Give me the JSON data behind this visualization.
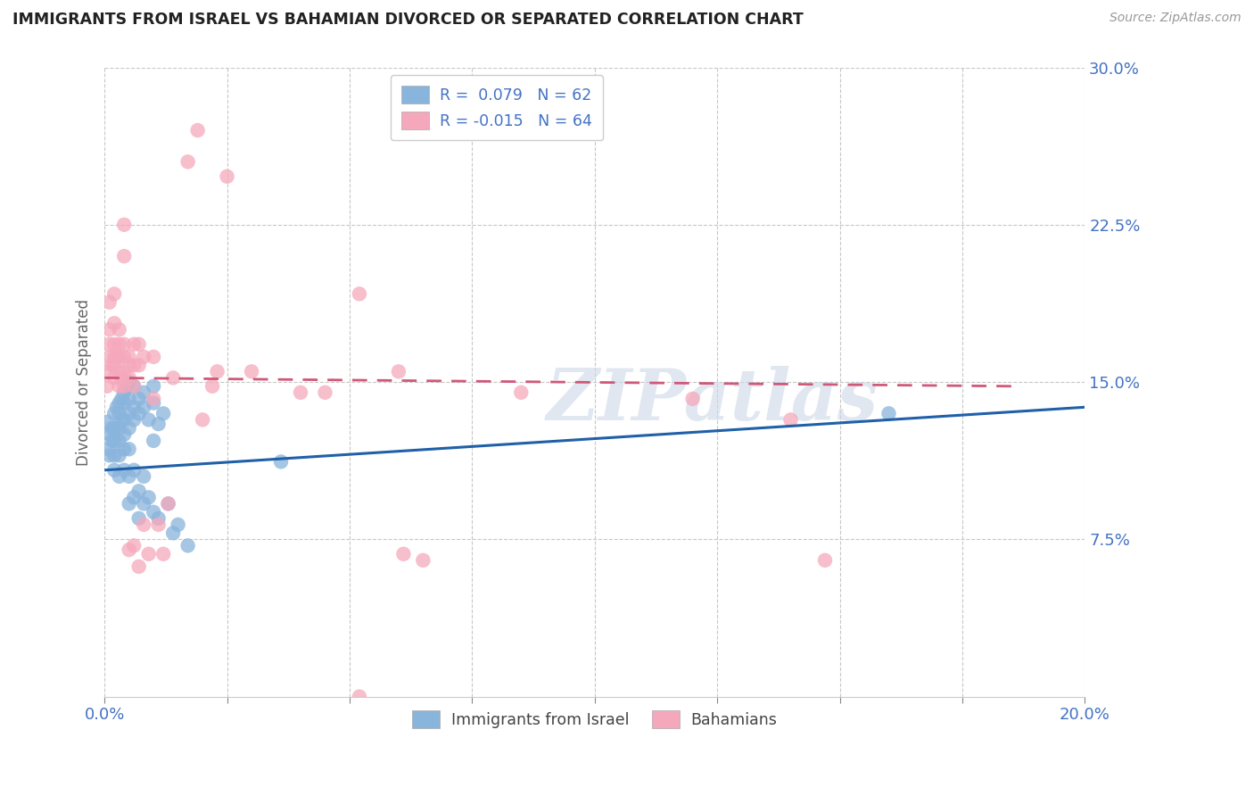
{
  "title": "IMMIGRANTS FROM ISRAEL VS BAHAMIAN DIVORCED OR SEPARATED CORRELATION CHART",
  "source": "Source: ZipAtlas.com",
  "ylabel": "Divorced or Separated",
  "xmin": 0.0,
  "xmax": 0.2,
  "ymin": 0.0,
  "ymax": 0.3,
  "yticks": [
    0.075,
    0.15,
    0.225,
    0.3
  ],
  "ytick_labels": [
    "7.5%",
    "15.0%",
    "22.5%",
    "30.0%"
  ],
  "xticks": [
    0.0,
    0.025,
    0.05,
    0.075,
    0.1,
    0.125,
    0.15,
    0.175,
    0.2
  ],
  "legend_r_blue": "R =  0.079",
  "legend_n_blue": "N = 62",
  "legend_r_pink": "R = -0.015",
  "legend_n_pink": "N = 64",
  "blue_color": "#89b4dc",
  "pink_color": "#f5a8bb",
  "trendline_blue": "#2060a8",
  "trendline_pink": "#d05878",
  "watermark": "ZIPatlas",
  "blue_trendline_x": [
    0.0,
    0.2
  ],
  "blue_trendline_y": [
    0.108,
    0.138
  ],
  "pink_trendline_x": [
    0.0,
    0.185
  ],
  "pink_trendline_y": [
    0.152,
    0.148
  ],
  "blue_scatter": [
    [
      0.0005,
      0.131
    ],
    [
      0.001,
      0.125
    ],
    [
      0.001,
      0.118
    ],
    [
      0.001,
      0.115
    ],
    [
      0.0015,
      0.128
    ],
    [
      0.0015,
      0.122
    ],
    [
      0.002,
      0.135
    ],
    [
      0.002,
      0.128
    ],
    [
      0.002,
      0.122
    ],
    [
      0.002,
      0.115
    ],
    [
      0.002,
      0.108
    ],
    [
      0.0025,
      0.138
    ],
    [
      0.003,
      0.14
    ],
    [
      0.003,
      0.135
    ],
    [
      0.003,
      0.128
    ],
    [
      0.003,
      0.122
    ],
    [
      0.003,
      0.115
    ],
    [
      0.003,
      0.105
    ],
    [
      0.0035,
      0.142
    ],
    [
      0.0035,
      0.132
    ],
    [
      0.004,
      0.145
    ],
    [
      0.004,
      0.14
    ],
    [
      0.004,
      0.132
    ],
    [
      0.004,
      0.125
    ],
    [
      0.004,
      0.118
    ],
    [
      0.004,
      0.108
    ],
    [
      0.0045,
      0.148
    ],
    [
      0.005,
      0.15
    ],
    [
      0.005,
      0.142
    ],
    [
      0.005,
      0.135
    ],
    [
      0.005,
      0.128
    ],
    [
      0.005,
      0.118
    ],
    [
      0.005,
      0.105
    ],
    [
      0.005,
      0.092
    ],
    [
      0.006,
      0.148
    ],
    [
      0.006,
      0.138
    ],
    [
      0.006,
      0.132
    ],
    [
      0.006,
      0.108
    ],
    [
      0.006,
      0.095
    ],
    [
      0.007,
      0.142
    ],
    [
      0.007,
      0.135
    ],
    [
      0.007,
      0.098
    ],
    [
      0.007,
      0.085
    ],
    [
      0.008,
      0.145
    ],
    [
      0.008,
      0.138
    ],
    [
      0.008,
      0.105
    ],
    [
      0.008,
      0.092
    ],
    [
      0.009,
      0.132
    ],
    [
      0.009,
      0.095
    ],
    [
      0.01,
      0.148
    ],
    [
      0.01,
      0.14
    ],
    [
      0.01,
      0.122
    ],
    [
      0.01,
      0.088
    ],
    [
      0.011,
      0.13
    ],
    [
      0.011,
      0.085
    ],
    [
      0.012,
      0.135
    ],
    [
      0.013,
      0.092
    ],
    [
      0.014,
      0.078
    ],
    [
      0.015,
      0.082
    ],
    [
      0.017,
      0.072
    ],
    [
      0.036,
      0.112
    ],
    [
      0.16,
      0.135
    ]
  ],
  "pink_scatter": [
    [
      0.0005,
      0.148
    ],
    [
      0.001,
      0.155
    ],
    [
      0.001,
      0.162
    ],
    [
      0.001,
      0.168
    ],
    [
      0.001,
      0.175
    ],
    [
      0.001,
      0.188
    ],
    [
      0.0015,
      0.158
    ],
    [
      0.002,
      0.152
    ],
    [
      0.002,
      0.158
    ],
    [
      0.002,
      0.162
    ],
    [
      0.002,
      0.168
    ],
    [
      0.002,
      0.178
    ],
    [
      0.002,
      0.192
    ],
    [
      0.0025,
      0.162
    ],
    [
      0.003,
      0.148
    ],
    [
      0.003,
      0.155
    ],
    [
      0.003,
      0.162
    ],
    [
      0.003,
      0.168
    ],
    [
      0.003,
      0.175
    ],
    [
      0.0035,
      0.152
    ],
    [
      0.004,
      0.148
    ],
    [
      0.004,
      0.155
    ],
    [
      0.004,
      0.162
    ],
    [
      0.004,
      0.168
    ],
    [
      0.004,
      0.21
    ],
    [
      0.004,
      0.225
    ],
    [
      0.005,
      0.152
    ],
    [
      0.005,
      0.158
    ],
    [
      0.005,
      0.162
    ],
    [
      0.005,
      0.07
    ],
    [
      0.006,
      0.158
    ],
    [
      0.006,
      0.168
    ],
    [
      0.006,
      0.148
    ],
    [
      0.006,
      0.072
    ],
    [
      0.007,
      0.168
    ],
    [
      0.007,
      0.158
    ],
    [
      0.007,
      0.062
    ],
    [
      0.008,
      0.162
    ],
    [
      0.008,
      0.082
    ],
    [
      0.009,
      0.068
    ],
    [
      0.01,
      0.162
    ],
    [
      0.01,
      0.142
    ],
    [
      0.011,
      0.082
    ],
    [
      0.012,
      0.068
    ],
    [
      0.013,
      0.092
    ],
    [
      0.014,
      0.152
    ],
    [
      0.017,
      0.255
    ],
    [
      0.019,
      0.27
    ],
    [
      0.02,
      0.132
    ],
    [
      0.022,
      0.148
    ],
    [
      0.023,
      0.155
    ],
    [
      0.025,
      0.248
    ],
    [
      0.03,
      0.155
    ],
    [
      0.04,
      0.145
    ],
    [
      0.045,
      0.145
    ],
    [
      0.052,
      0.192
    ],
    [
      0.052,
      0.0
    ],
    [
      0.06,
      0.155
    ],
    [
      0.061,
      0.068
    ],
    [
      0.065,
      0.065
    ],
    [
      0.085,
      0.145
    ],
    [
      0.12,
      0.142
    ],
    [
      0.14,
      0.132
    ],
    [
      0.147,
      0.065
    ]
  ]
}
